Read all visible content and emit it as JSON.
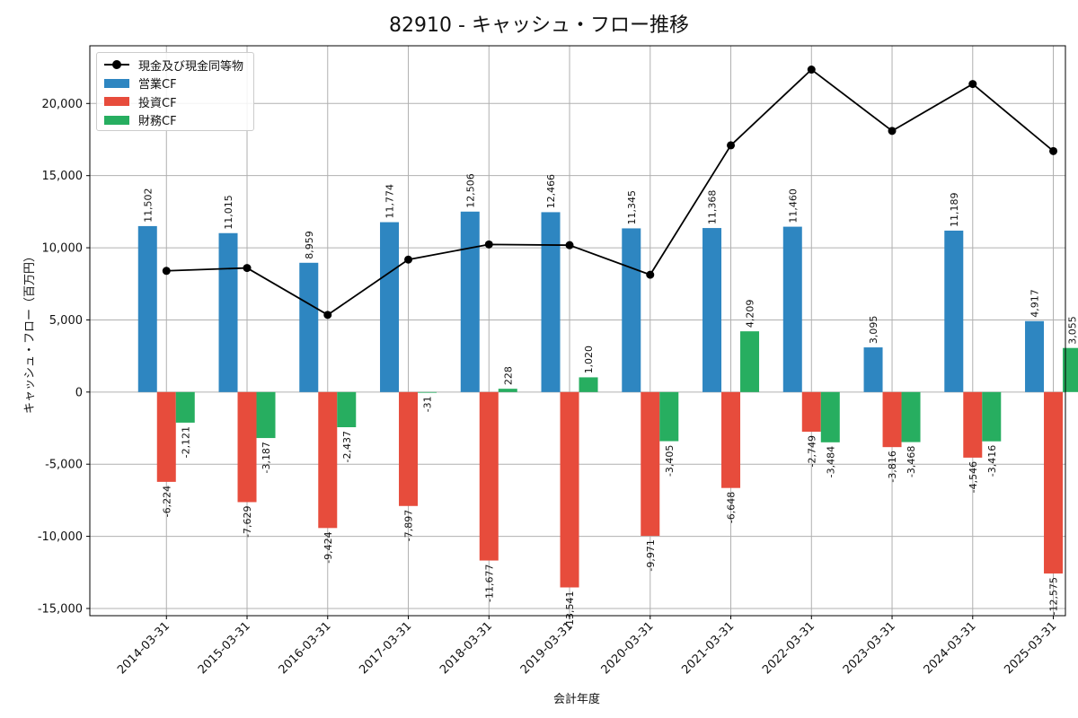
{
  "chart_data": {
    "type": "bar",
    "title": "82910 - キャッシュ・フロー推移",
    "xlabel": "会計年度",
    "ylabel": "キャッシュ・フロー（百万円）",
    "categories": [
      "2014-03-31",
      "2015-03-31",
      "2016-03-31",
      "2017-03-31",
      "2018-03-31",
      "2019-03-31",
      "2020-03-31",
      "2021-03-31",
      "2022-03-31",
      "2023-03-31",
      "2024-03-31",
      "2025-03-31"
    ],
    "ylim": [
      -15500,
      24000
    ],
    "yticks": [
      -15000,
      -10000,
      -5000,
      0,
      5000,
      10000,
      15000,
      20000
    ],
    "ytick_labels": [
      "-15,000",
      "-10,000",
      "-5,000",
      "0",
      "5,000",
      "10,000",
      "15,000",
      "20,000"
    ],
    "grid": true,
    "legend_position": "top-left",
    "series": [
      {
        "name": "営業CF",
        "kind": "bar",
        "color": "#2e86c1",
        "values": [
          11502,
          11015,
          8959,
          11774,
          12506,
          12466,
          11345,
          11368,
          11460,
          3095,
          11189,
          4917
        ],
        "labels": [
          "11,502",
          "11,015",
          "8,959",
          "11,774",
          "12,506",
          "12,466",
          "11,345",
          "11,368",
          "11,460",
          "3,095",
          "11,189",
          "4,917"
        ]
      },
      {
        "name": "投資CF",
        "kind": "bar",
        "color": "#e74c3c",
        "values": [
          -6224,
          -7629,
          -9424,
          -7897,
          -11677,
          -13541,
          -9971,
          -6648,
          -2749,
          -3816,
          -4546,
          -12575
        ],
        "labels": [
          "-6,224",
          "-7,629",
          "-9,424",
          "-7,897",
          "-11,677",
          "-13,541",
          "-9,971",
          "-6,648",
          "-2,749",
          "-3,816",
          "-4,546",
          "-12,575"
        ]
      },
      {
        "name": "財務CF",
        "kind": "bar",
        "color": "#27ae60",
        "values": [
          -2121,
          -3187,
          -2437,
          -31,
          228,
          1020,
          -3405,
          4209,
          -3484,
          -3468,
          -3416,
          3055
        ],
        "labels": [
          "-2,121",
          "-3,187",
          "-2,437",
          "-31",
          "228",
          "1,020",
          "-3,405",
          "4,209",
          "-3,484",
          "-3,468",
          "-3,416",
          "3,055"
        ]
      },
      {
        "name": "現金及び現金同等物",
        "kind": "line",
        "color": "#000000",
        "values": [
          8400,
          8600,
          5350,
          9180,
          10230,
          10180,
          8130,
          17100,
          22350,
          18100,
          21350,
          16700
        ]
      }
    ]
  }
}
